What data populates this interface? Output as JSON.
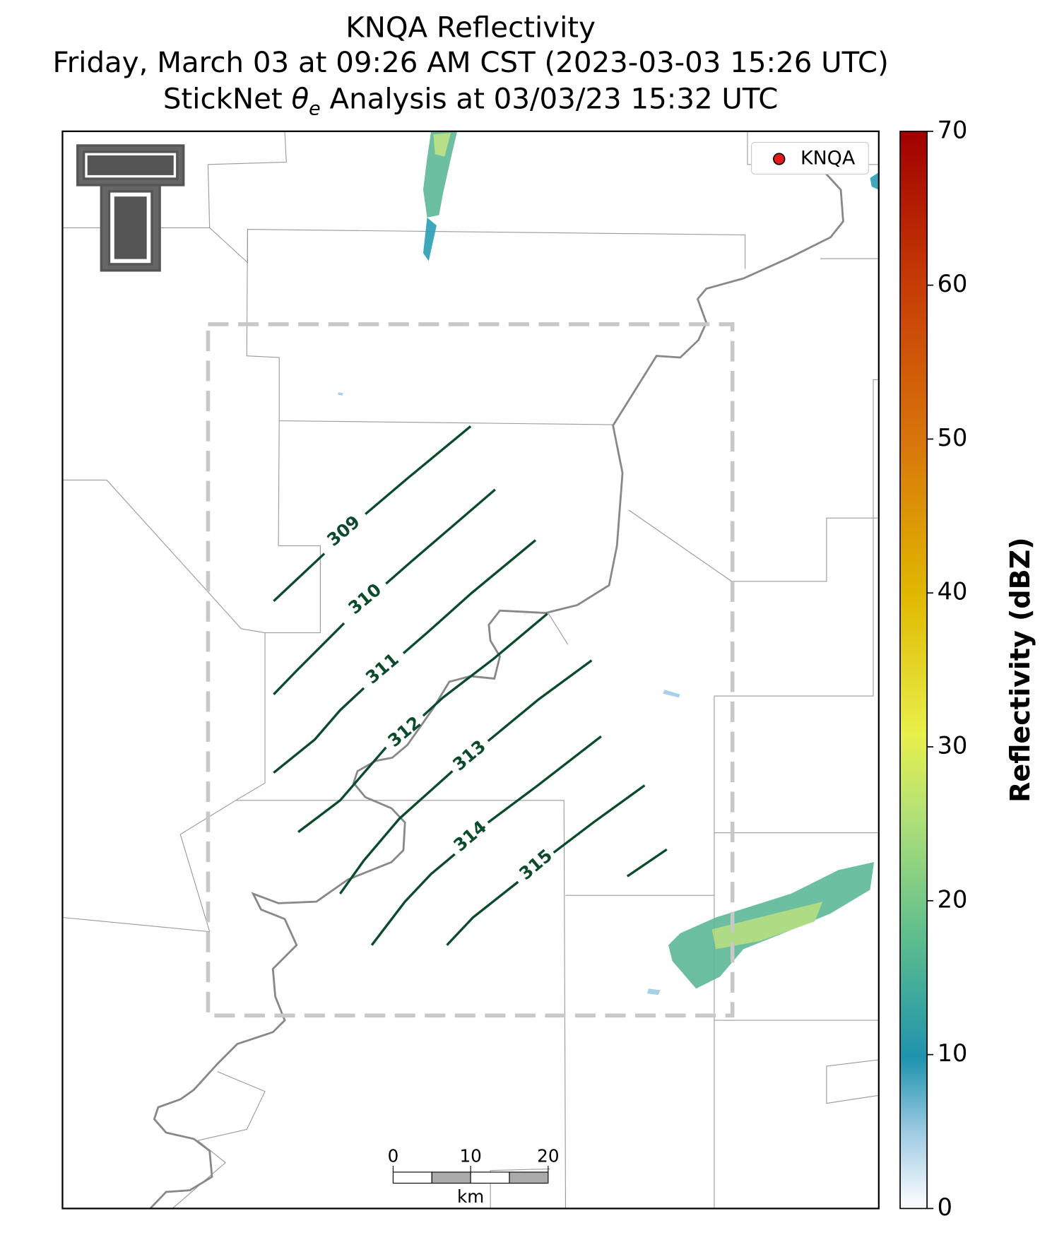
{
  "title": [
    "KNQA Reflectivity",
    "Friday, March 03 at 09:26 AM CST (2023-03-03 15:26 UTC)"
  ],
  "title_line3": {
    "pre": "StickNet ",
    "symbol": "θ",
    "sub": "e",
    "post": " Analysis at 03/03/23 15:32 UTC"
  },
  "legend": [
    "KNQA"
  ],
  "colorbar": {
    "label": "Reflectivity (dBZ)",
    "lim": [
      0,
      70
    ],
    "ticks": [
      0,
      10,
      20,
      30,
      40,
      50,
      60,
      70
    ]
  },
  "contour_labels": [
    309,
    310,
    311,
    312,
    313,
    314,
    315
  ],
  "scale_bar": {
    "ticks": [
      0,
      10,
      20
    ],
    "unit": "km"
  }
}
